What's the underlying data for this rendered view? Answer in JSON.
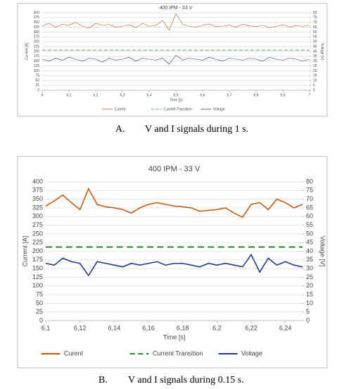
{
  "chart_data": [
    {
      "type": "line",
      "title": "400 IPM - 33 V",
      "xlabel": "Time [s]",
      "ylabel": "Current [A]",
      "y2label": "Voltage [V]",
      "x": [
        6,
        6.025,
        6.05,
        6.075,
        6.1,
        6.125,
        6.15,
        6.175,
        6.2,
        6.225,
        6.25,
        6.275,
        6.3,
        6.325,
        6.35,
        6.375,
        6.4,
        6.425,
        6.45,
        6.475,
        6.5,
        6.525,
        6.55,
        6.575,
        6.6,
        6.625,
        6.65,
        6.675,
        6.7,
        6.725,
        6.75,
        6.775,
        6.8,
        6.825,
        6.85,
        6.875,
        6.9,
        6.925,
        6.95,
        6.975,
        7
      ],
      "series": [
        {
          "name": "Curent",
          "color": "#c55a11",
          "values": [
            330,
            345,
            325,
            340,
            335,
            350,
            330,
            320,
            345,
            335,
            340,
            325,
            330,
            338,
            322,
            345,
            330,
            335,
            360,
            310,
            395,
            340,
            330,
            325,
            335,
            342,
            328,
            330,
            336,
            325,
            340,
            332,
            328,
            335,
            322,
            330,
            338,
            326,
            334,
            330,
            335
          ]
        },
        {
          "name": "Current Transition",
          "color": "#2e8b2e",
          "dashed": true,
          "values": [
            207,
            207,
            207,
            207,
            207,
            207,
            207,
            207,
            207,
            207,
            207,
            207,
            207,
            207,
            207,
            207,
            207,
            207,
            207,
            207,
            207,
            207,
            207,
            207,
            207,
            207,
            207,
            207,
            207,
            207,
            207,
            207,
            207,
            207,
            207,
            207,
            207,
            207,
            207,
            207,
            207
          ]
        },
        {
          "name": "Voltage",
          "color": "#1f3d8c",
          "axis": "y2",
          "values": [
            32,
            30,
            33,
            31,
            34,
            32,
            30,
            33,
            32,
            29,
            33,
            31,
            32,
            34,
            30,
            33,
            32,
            31,
            33,
            27,
            36,
            31,
            33,
            32,
            31,
            34,
            32,
            30,
            33,
            32,
            31,
            33,
            32,
            30,
            34,
            32,
            31,
            33,
            32,
            30,
            32
          ]
        }
      ],
      "xlim": [
        6,
        7
      ],
      "xticks": [
        6,
        {
          "value": 6.1,
          "label": "6,1"
        },
        {
          "value": 6.2,
          "label": "6,2"
        },
        {
          "value": 6.3,
          "label": "6,3"
        },
        {
          "value": 6.4,
          "label": "6,4"
        },
        {
          "value": 6.5,
          "label": "6,5"
        },
        {
          "value": 6.6,
          "label": "6,6"
        },
        {
          "value": 6.7,
          "label": "6,7"
        },
        {
          "value": 6.8,
          "label": "6,8"
        },
        {
          "value": 6.9,
          "label": "6,9"
        },
        7
      ],
      "ylim": [
        0,
        400
      ],
      "yticks": [
        0,
        25,
        50,
        75,
        100,
        125,
        150,
        175,
        200,
        225,
        250,
        275,
        300,
        325,
        350,
        375,
        400
      ],
      "y2lim": [
        0,
        80
      ],
      "y2ticks": [
        0,
        5,
        10,
        15,
        20,
        25,
        30,
        35,
        40,
        45,
        50,
        55,
        60,
        65,
        70,
        75,
        80
      ],
      "grid": true
    },
    {
      "type": "line",
      "title": "400 IPM - 33 V",
      "xlabel": "Time [s]",
      "ylabel": "Current [A]",
      "y2label": "Voltage [V]",
      "x": [
        6.1,
        6.105,
        6.11,
        6.115,
        6.12,
        6.125,
        6.13,
        6.135,
        6.14,
        6.145,
        6.15,
        6.155,
        6.16,
        6.165,
        6.17,
        6.175,
        6.18,
        6.185,
        6.19,
        6.195,
        6.2,
        6.205,
        6.21,
        6.215,
        6.22,
        6.225,
        6.23,
        6.235,
        6.24,
        6.245,
        6.25
      ],
      "series": [
        {
          "name": "Curent",
          "color": "#c55a11",
          "values": [
            330,
            345,
            362,
            340,
            320,
            380,
            335,
            328,
            325,
            320,
            310,
            325,
            335,
            340,
            335,
            330,
            328,
            325,
            315,
            318,
            320,
            325,
            310,
            298,
            335,
            340,
            320,
            350,
            340,
            325,
            335
          ]
        },
        {
          "name": "Current Transition",
          "color": "#2e8b2e",
          "dashed": true,
          "values": [
            212,
            212,
            212,
            212,
            212,
            212,
            212,
            212,
            212,
            212,
            212,
            212,
            212,
            212,
            212,
            212,
            212,
            212,
            212,
            212,
            212,
            212,
            212,
            212,
            212,
            212,
            212,
            212,
            212,
            212,
            212
          ]
        },
        {
          "name": "Voltage",
          "color": "#1f3d8c",
          "axis": "y2",
          "values": [
            33,
            32,
            36,
            34,
            33,
            26,
            34,
            33,
            32,
            31,
            33,
            32,
            33,
            34,
            32,
            33,
            33,
            32,
            31,
            33,
            32,
            33,
            32,
            31,
            38,
            28,
            36,
            32,
            34,
            32,
            31
          ]
        }
      ],
      "xlim": [
        6.1,
        6.25
      ],
      "xticks": [
        {
          "value": 6.1,
          "label": "6,1"
        },
        {
          "value": 6.12,
          "label": "6,12"
        },
        {
          "value": 6.14,
          "label": "6,14"
        },
        {
          "value": 6.16,
          "label": "6,16"
        },
        {
          "value": 6.18,
          "label": "6,18"
        },
        {
          "value": 6.2,
          "label": "6,2"
        },
        {
          "value": 6.22,
          "label": "6,22"
        },
        {
          "value": 6.24,
          "label": "6,24"
        }
      ],
      "ylim": [
        0,
        400
      ],
      "yticks": [
        0,
        25,
        50,
        75,
        100,
        125,
        150,
        175,
        200,
        225,
        250,
        275,
        300,
        325,
        350,
        375,
        400
      ],
      "y2lim": [
        0,
        80
      ],
      "y2ticks": [
        0,
        5,
        10,
        15,
        20,
        25,
        30,
        35,
        40,
        45,
        50,
        55,
        60,
        65,
        70,
        75,
        80
      ],
      "grid": true
    }
  ],
  "captions": [
    {
      "label": "A.",
      "text": "V and I signals during 1 s."
    },
    {
      "label": "B.",
      "text": "V and I signals during 0.15 s."
    }
  ]
}
